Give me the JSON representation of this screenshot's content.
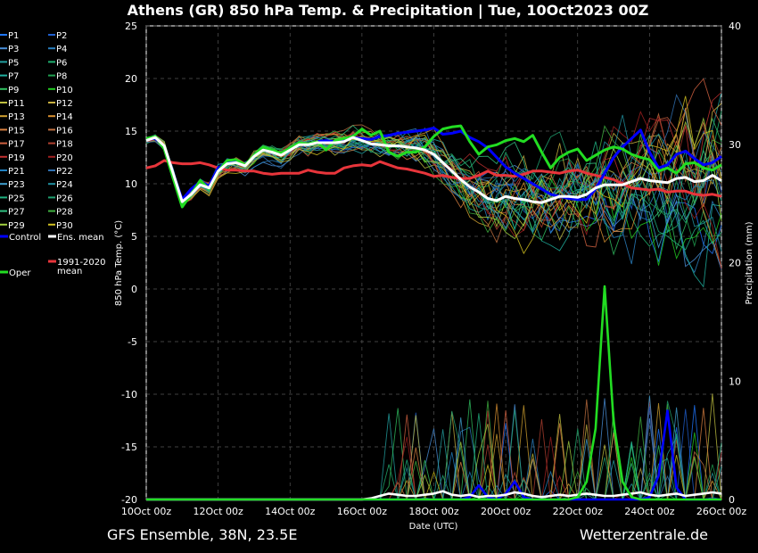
{
  "title": "Athens  (GR)  850 hPa Temp. & Precipitation | Tue, 10Oct2023 00Z",
  "footer_left": "GFS Ensemble, 38N, 23.5E",
  "footer_right": "Wetterzentrale.de",
  "colors": {
    "background": "#000000",
    "grid": "#555555",
    "control": "#0000ff",
    "ens_mean": "#ffffff",
    "climate_mean": "#e8353b",
    "oper": "#22dd22"
  },
  "chart_data": {
    "type": "line",
    "xlabel": "Date (UTC)",
    "ylabel": "850 hPa Temp. (°C)",
    "y2label": "Precipitation (mm)",
    "x_ticks": [
      "10Oct 00z",
      "12Oct 00z",
      "14Oct 00z",
      "16Oct 00z",
      "18Oct 00z",
      "20Oct 00z",
      "22Oct 00z",
      "24Oct 00z",
      "26Oct 00z"
    ],
    "xlim_hours": [
      0,
      384
    ],
    "ylim": [
      -20,
      25
    ],
    "y_ticks": [
      -20,
      -15,
      -10,
      -5,
      0,
      5,
      10,
      15,
      20,
      25
    ],
    "y2lim": [
      0,
      40
    ],
    "y2_ticks": [
      0,
      10,
      20,
      30,
      40
    ],
    "grid": true,
    "legend_position": "left-outside",
    "legend": [
      {
        "label": "P1",
        "color": "#1f77ff"
      },
      {
        "label": "P2",
        "color": "#1f5fcf"
      },
      {
        "label": "P3",
        "color": "#4a90d9"
      },
      {
        "label": "P4",
        "color": "#2a80c0"
      },
      {
        "label": "P5",
        "color": "#22a0a0"
      },
      {
        "label": "P6",
        "color": "#20b070"
      },
      {
        "label": "P7",
        "color": "#20b0a0"
      },
      {
        "label": "P8",
        "color": "#20a050"
      },
      {
        "label": "P9",
        "color": "#30c060"
      },
      {
        "label": "P10",
        "color": "#22cc22"
      },
      {
        "label": "P11",
        "color": "#c0c040"
      },
      {
        "label": "P12",
        "color": "#c8b040"
      },
      {
        "label": "P13",
        "color": "#d0a030"
      },
      {
        "label": "P14",
        "color": "#d89030"
      },
      {
        "label": "P15",
        "color": "#d88040"
      },
      {
        "label": "P16",
        "color": "#c07040"
      },
      {
        "label": "P17",
        "color": "#d06040"
      },
      {
        "label": "P18",
        "color": "#b04030"
      },
      {
        "label": "P19",
        "color": "#c03030"
      },
      {
        "label": "P20",
        "color": "#a02020"
      },
      {
        "label": "P21",
        "color": "#2080c0"
      },
      {
        "label": "P22",
        "color": "#3070b0"
      },
      {
        "label": "P23",
        "color": "#40a0d0"
      },
      {
        "label": "P24",
        "color": "#2090a0"
      },
      {
        "label": "P25",
        "color": "#20b080"
      },
      {
        "label": "P26",
        "color": "#20a070"
      },
      {
        "label": "P27",
        "color": "#30c080"
      },
      {
        "label": "P28",
        "color": "#40b040"
      },
      {
        "label": "P29",
        "color": "#a0d040"
      },
      {
        "label": "P30",
        "color": "#d0c020"
      },
      {
        "label": "Control",
        "color": "#0000ff"
      },
      {
        "label": "Ens. mean",
        "color": "#ffffff"
      },
      {
        "label": "1991-2020 mean",
        "color": "#e8353b"
      },
      {
        "label": "Oper",
        "color": "#22dd22"
      }
    ],
    "series": [
      {
        "name": "Control",
        "x": [
          0,
          6,
          12,
          18,
          24,
          30,
          36,
          42,
          48,
          54,
          60,
          66,
          72,
          78,
          84,
          90,
          96,
          102,
          108,
          114,
          120,
          126,
          132,
          138,
          144,
          150,
          156,
          162,
          168,
          174,
          180,
          186,
          192,
          198,
          204,
          210,
          216,
          222,
          228,
          234,
          240,
          246,
          252,
          258,
          264,
          270,
          276,
          282,
          288,
          294,
          300,
          306,
          312,
          318,
          324,
          330,
          336,
          342,
          348,
          354,
          360,
          366,
          372,
          378,
          384
        ],
        "values": [
          14.2,
          14.3,
          13.5,
          11.0,
          8.5,
          9.5,
          10.2,
          9.8,
          11.5,
          12.0,
          12.2,
          11.8,
          12.6,
          13.5,
          13.2,
          12.8,
          13.4,
          13.9,
          13.8,
          14.0,
          14.1,
          14.0,
          14.2,
          14.4,
          14.3,
          14.2,
          14.5,
          14.6,
          14.8,
          14.9,
          15.0,
          15.1,
          15.3,
          14.7,
          14.8,
          15.0,
          14.4,
          14.0,
          13.4,
          12.5,
          11.6,
          11.0,
          10.5,
          10.0,
          9.5,
          9.0,
          8.8,
          8.6,
          8.5,
          8.5,
          9.5,
          11.0,
          12.5,
          13.5,
          14.3,
          15.1,
          13.0,
          11.5,
          11.8,
          12.8,
          13.1,
          12.4,
          11.8,
          12.0,
          12.6
        ]
      },
      {
        "name": "Ens. mean",
        "x": [
          0,
          6,
          12,
          18,
          24,
          30,
          36,
          42,
          48,
          54,
          60,
          66,
          72,
          78,
          84,
          90,
          96,
          102,
          108,
          114,
          120,
          126,
          132,
          138,
          144,
          150,
          156,
          162,
          168,
          174,
          180,
          186,
          192,
          198,
          204,
          210,
          216,
          222,
          228,
          234,
          240,
          246,
          252,
          258,
          264,
          270,
          276,
          282,
          288,
          294,
          300,
          306,
          312,
          318,
          324,
          330,
          336,
          342,
          348,
          354,
          360,
          366,
          372,
          378,
          384
        ],
        "values": [
          14.1,
          14.4,
          13.6,
          11.0,
          8.3,
          9.0,
          9.9,
          9.6,
          11.2,
          11.9,
          12.0,
          11.7,
          12.6,
          13.2,
          13.0,
          12.7,
          13.2,
          13.7,
          13.7,
          13.9,
          13.9,
          13.9,
          14.0,
          14.4,
          14.1,
          13.8,
          13.7,
          13.6,
          13.6,
          13.5,
          13.4,
          13.2,
          12.8,
          12.0,
          11.2,
          10.4,
          9.7,
          9.2,
          8.6,
          8.4,
          8.8,
          8.6,
          8.5,
          8.3,
          8.2,
          8.5,
          8.8,
          8.8,
          8.7,
          9.0,
          9.6,
          9.9,
          9.9,
          9.9,
          10.2,
          10.5,
          10.3,
          10.2,
          10.1,
          10.5,
          10.6,
          10.2,
          10.3,
          10.8,
          10.3
        ]
      },
      {
        "name": "1991-2020 mean",
        "x": [
          0,
          6,
          12,
          18,
          24,
          30,
          36,
          42,
          48,
          54,
          60,
          66,
          72,
          78,
          84,
          90,
          96,
          102,
          108,
          114,
          120,
          126,
          132,
          138,
          144,
          150,
          156,
          162,
          168,
          174,
          180,
          186,
          192,
          198,
          204,
          210,
          216,
          222,
          228,
          234,
          240,
          246,
          252,
          258,
          264,
          270,
          276,
          282,
          288,
          294,
          300,
          306,
          312,
          318,
          324,
          330,
          336,
          342,
          348,
          354,
          360,
          366,
          372,
          378,
          384
        ],
        "values": [
          11.5,
          11.7,
          12.2,
          12.0,
          11.9,
          11.9,
          12.0,
          11.8,
          11.5,
          11.3,
          11.3,
          11.2,
          11.2,
          11.0,
          10.9,
          11.0,
          11.0,
          11.0,
          11.3,
          11.1,
          11.0,
          11.0,
          11.5,
          11.7,
          11.8,
          11.7,
          12.1,
          11.8,
          11.5,
          11.4,
          11.2,
          11.0,
          10.7,
          10.8,
          10.6,
          10.5,
          10.5,
          10.8,
          11.2,
          10.8,
          10.8,
          10.7,
          10.9,
          11.2,
          11.2,
          11.1,
          11.0,
          11.2,
          11.3,
          11.0,
          10.8,
          10.6,
          10.4,
          10.0,
          9.6,
          9.5,
          9.4,
          9.5,
          9.2,
          9.3,
          9.3,
          9.0,
          8.9,
          9.0,
          8.8
        ]
      },
      {
        "name": "Oper",
        "x": [
          0,
          6,
          12,
          18,
          24,
          30,
          36,
          42,
          48,
          54,
          60,
          66,
          72,
          78,
          84,
          90,
          96,
          102,
          108,
          114,
          120,
          126,
          132,
          138,
          144,
          150,
          156,
          162,
          168,
          174,
          180,
          186,
          192,
          198,
          204,
          210,
          216,
          222,
          228,
          234,
          240,
          246,
          252,
          258,
          264,
          270,
          276,
          282,
          288,
          294,
          300,
          306,
          312,
          318,
          324,
          330,
          336,
          342,
          348,
          354,
          360,
          366,
          372,
          378,
          384
        ],
        "values": [
          14.3,
          14.5,
          13.3,
          10.5,
          7.8,
          9.0,
          10.3,
          9.5,
          11.2,
          12.2,
          12.3,
          11.8,
          12.7,
          13.5,
          13.2,
          12.9,
          13.4,
          13.9,
          13.8,
          14.0,
          13.2,
          14.1,
          14.3,
          14.5,
          15.2,
          14.6,
          15.0,
          13.0,
          12.6,
          13.0,
          13.0,
          13.5,
          14.5,
          15.2,
          15.4,
          15.5,
          14.0,
          12.8,
          13.5,
          13.7,
          14.1,
          14.3,
          14.0,
          14.6,
          13.0,
          11.5,
          12.5,
          13.0,
          13.3,
          12.2,
          12.7,
          13.2,
          13.5,
          13.3,
          12.8,
          12.5,
          12.3,
          11.2,
          11.5,
          11.0,
          11.9,
          12.0,
          11.5,
          11.3,
          11.8
        ]
      }
    ],
    "precip_series": [
      {
        "name": "Control",
        "x": [
          0,
          180,
          210,
          216,
          222,
          228,
          234,
          240,
          246,
          252,
          258,
          264,
          270,
          276,
          282,
          288,
          294,
          300,
          306,
          312,
          318,
          324,
          330,
          336,
          342,
          348,
          354,
          360,
          366,
          372,
          378,
          384
        ],
        "values": [
          0,
          0,
          0,
          0.2,
          1.2,
          0.2,
          0,
          0.5,
          1.5,
          0.2,
          0,
          0,
          0,
          0,
          0,
          0,
          0,
          0,
          0,
          0,
          0,
          0,
          0,
          0.2,
          2.0,
          7.5,
          1.0,
          0,
          0,
          0,
          0,
          0
        ]
      },
      {
        "name": "Ens. mean",
        "x": [
          0,
          120,
          144,
          150,
          156,
          162,
          168,
          174,
          180,
          186,
          192,
          198,
          204,
          210,
          216,
          222,
          228,
          234,
          240,
          246,
          252,
          258,
          264,
          270,
          276,
          282,
          288,
          294,
          300,
          306,
          312,
          318,
          324,
          330,
          336,
          342,
          348,
          354,
          360,
          366,
          372,
          378,
          384
        ],
        "values": [
          0,
          0,
          0,
          0.1,
          0.3,
          0.5,
          0.4,
          0.3,
          0.3,
          0.4,
          0.5,
          0.7,
          0.4,
          0.3,
          0.4,
          0.2,
          0.3,
          0.3,
          0.4,
          0.6,
          0.5,
          0.3,
          0.2,
          0.3,
          0.4,
          0.3,
          0.4,
          0.5,
          0.4,
          0.3,
          0.3,
          0.4,
          0.5,
          0.6,
          0.4,
          0.3,
          0.4,
          0.5,
          0.3,
          0.4,
          0.5,
          0.6,
          0.5
        ]
      },
      {
        "name": "Oper",
        "x": [
          0,
          240,
          282,
          288,
          294,
          300,
          306,
          312,
          318,
          324,
          330,
          336,
          342,
          348,
          354,
          360,
          366,
          372,
          378,
          384
        ],
        "values": [
          0,
          0,
          0,
          0.2,
          1.5,
          6.0,
          18.0,
          6.5,
          1.5,
          0.2,
          0,
          0,
          0,
          0,
          0,
          0,
          0,
          0,
          0,
          0
        ]
      }
    ]
  }
}
